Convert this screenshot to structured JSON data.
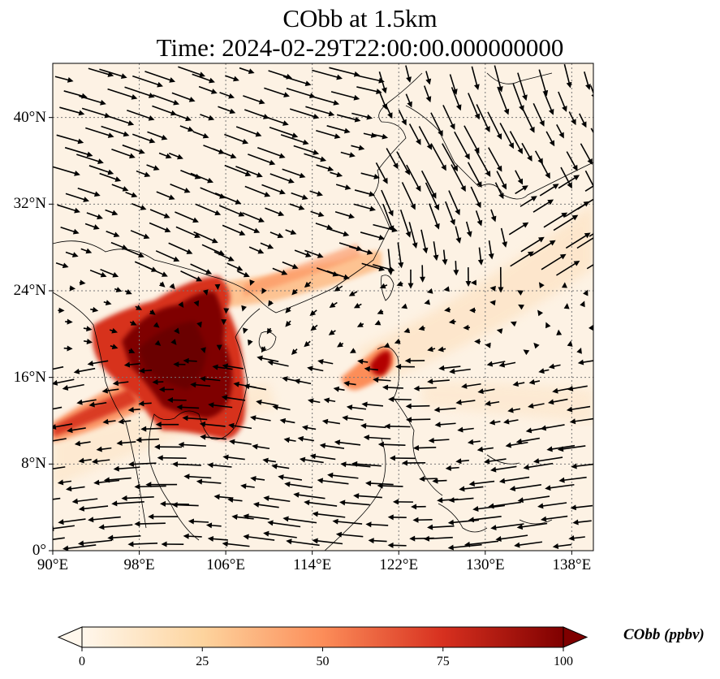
{
  "title": {
    "line1": "CObb at 1.5km",
    "line2": "Time: 2024-02-29T22:00:00.000000000"
  },
  "map": {
    "projection": "PlateCarree",
    "lon_range": [
      90,
      140
    ],
    "lat_range": [
      0,
      45
    ],
    "xticks": [
      "90°E",
      "98°E",
      "106°E",
      "114°E",
      "122°E",
      "130°E",
      "138°E"
    ],
    "yticks": [
      "0°",
      "8°N",
      "16°N",
      "24°N",
      "32°N",
      "40°N"
    ],
    "gridlines": "dotted",
    "field": "CObb",
    "overlay": "wind vectors (quiver)",
    "high_concentration_areas": [
      "Indochina / Myanmar–Laos–Thailand",
      "Northern Luzon",
      "Southern China plume"
    ]
  },
  "colorbar": {
    "label": "CObb (ppbv)",
    "ticks": [
      "0",
      "25",
      "50",
      "75",
      "100"
    ],
    "min": 0,
    "max": 100,
    "colormap": "OrRd",
    "extend": "both",
    "colors": [
      "#fff7ec",
      "#fdd49e",
      "#fc8d59",
      "#d7301f",
      "#7f0000"
    ]
  }
}
